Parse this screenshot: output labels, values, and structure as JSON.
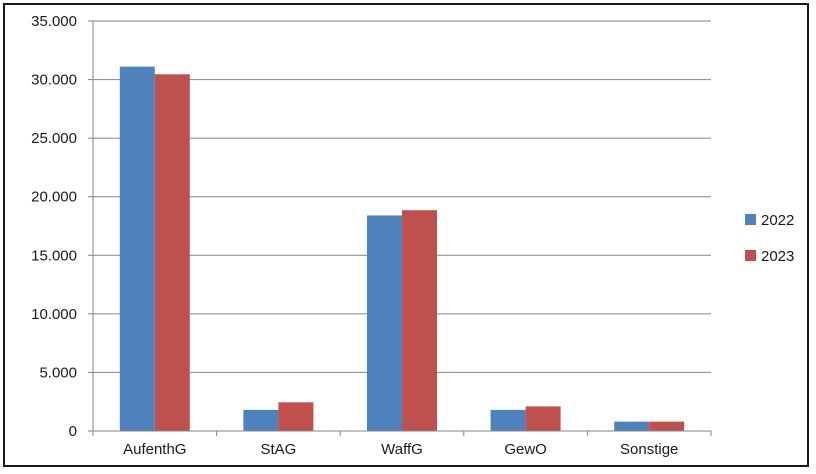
{
  "chart_data": {
    "type": "bar",
    "categories": [
      "AufenthG",
      "StAG",
      "WaffG",
      "GewO",
      "Sonstige"
    ],
    "series": [
      {
        "name": "2022",
        "values": [
          31100,
          1800,
          18400,
          1800,
          800
        ],
        "color": "#4f81bd"
      },
      {
        "name": "2023",
        "values": [
          30450,
          2450,
          18850,
          2100,
          800
        ],
        "color": "#c0504d"
      }
    ],
    "ylim": [
      0,
      35000
    ],
    "yticks": [
      "0",
      "5.000",
      "10.000",
      "15.000",
      "20.000",
      "25.000",
      "30.000",
      "35.000"
    ],
    "ytick_values": [
      0,
      5000,
      10000,
      15000,
      20000,
      25000,
      30000,
      35000
    ],
    "grid": true,
    "legend_position": "right",
    "title": "",
    "xlabel": "",
    "ylabel": ""
  }
}
